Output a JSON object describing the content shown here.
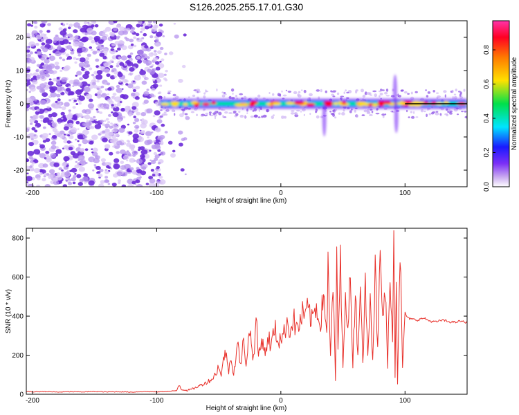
{
  "title": "S126.2025.255.17.01.G30",
  "colors": {
    "snr_line": "#e8302a",
    "ridge_core": "#e8302a",
    "scatter": "#6b2bd8",
    "colorbar": [
      "#ffffff",
      "#c8a8f0",
      "#7b2ff7",
      "#1a1aff",
      "#00e5ff",
      "#00e04a",
      "#ffe000",
      "#ff7a00",
      "#ff0022",
      "#ff33aa"
    ]
  },
  "chart_data": [
    {
      "type": "heatmap",
      "panel": "spectrogram",
      "xlabel": "Height of straight line (km)",
      "ylabel": "Frequency (Hz)",
      "xlim": [
        -205,
        150
      ],
      "ylim": [
        -25,
        25
      ],
      "x_ticks": [
        -200,
        -100,
        0,
        100
      ],
      "x_tick_labels": [
        "-200",
        "-100",
        "0",
        "100"
      ],
      "y_ticks": [
        -20,
        -10,
        0,
        10,
        20
      ],
      "y_tick_labels": [
        "-20",
        "-10",
        "0",
        "10",
        "20"
      ],
      "noise_region_x": [
        -205,
        -95
      ],
      "ridge_frequency_hz": 0,
      "ridge_x": [
        -97,
        150
      ],
      "fit_line_x": [
        100,
        150
      ],
      "colorbar": {
        "label": "Normalized spectral amplitude",
        "range": [
          0,
          0.97
        ],
        "ticks": [
          0,
          0.2,
          0.4,
          0.6,
          0.8
        ],
        "tick_labels": [
          "0.0",
          "0.2",
          "0.4",
          "0.6",
          "0.8"
        ]
      }
    },
    {
      "type": "line",
      "panel": "snr",
      "xlabel": "Height of straight line (km)",
      "ylabel": "SNR (10 * v/v)",
      "xlim": [
        -205,
        150
      ],
      "ylim": [
        0,
        850
      ],
      "x_ticks": [
        -200,
        -100,
        0,
        100
      ],
      "x_tick_labels": [
        "-200",
        "-100",
        "0",
        "100"
      ],
      "y_ticks": [
        0,
        200,
        400,
        600,
        800
      ],
      "y_tick_labels": [
        "0",
        "200",
        "400",
        "600",
        "800"
      ],
      "series": [
        {
          "x": [
            -205,
            -200,
            -190,
            -180,
            -170,
            -160,
            -150,
            -140,
            -130,
            -120,
            -110,
            -100,
            -90,
            -84,
            -82,
            -80,
            -75,
            -70,
            -65,
            -60,
            -55,
            -52,
            -50,
            -48,
            -45,
            -42,
            -40,
            -38,
            -35,
            -32,
            -30,
            -28,
            -25,
            -22,
            -20,
            -18,
            -15,
            -12,
            -10,
            -8,
            -5,
            -2,
            0,
            2,
            5,
            8,
            10,
            12,
            15,
            18,
            20,
            22,
            25,
            28,
            30,
            32,
            35,
            37,
            38,
            40,
            42,
            44,
            45,
            46,
            48,
            50,
            52,
            54,
            56,
            58,
            60,
            62,
            64,
            66,
            68,
            70,
            72,
            74,
            76,
            78,
            80,
            82,
            84,
            86,
            88,
            90,
            91,
            92,
            93,
            94,
            96,
            98,
            100,
            102,
            105,
            110,
            115,
            120,
            125,
            130,
            135,
            140,
            145,
            150
          ],
          "y": [
            15,
            12,
            14,
            11,
            13,
            12,
            14,
            12,
            13,
            11,
            14,
            12,
            15,
            18,
            50,
            25,
            20,
            30,
            45,
            60,
            80,
            110,
            150,
            90,
            230,
            120,
            200,
            100,
            260,
            140,
            290,
            160,
            330,
            180,
            380,
            200,
            280,
            210,
            300,
            240,
            340,
            270,
            300,
            290,
            380,
            320,
            400,
            330,
            360,
            420,
            390,
            440,
            370,
            460,
            400,
            380,
            520,
            300,
            640,
            180,
            590,
            60,
            720,
            250,
            660,
            120,
            580,
            300,
            620,
            160,
            540,
            200,
            600,
            140,
            560,
            240,
            520,
            180,
            640,
            220,
            700,
            380,
            550,
            130,
            680,
            250,
            850,
            100,
            620,
            60,
            780,
            120,
            420,
            390,
            385,
            380,
            390,
            375,
            370,
            380,
            372,
            368,
            375,
            365
          ]
        }
      ]
    }
  ]
}
